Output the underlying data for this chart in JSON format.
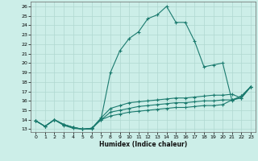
{
  "xlabel": "Humidex (Indice chaleur)",
  "bg_color": "#cceee8",
  "grid_color": "#b0d8d0",
  "line_color": "#1a7a6e",
  "xlim": [
    -0.5,
    23.5
  ],
  "ylim": [
    12.7,
    26.5
  ],
  "xticks": [
    0,
    1,
    2,
    3,
    4,
    5,
    6,
    7,
    8,
    9,
    10,
    11,
    12,
    13,
    14,
    15,
    16,
    17,
    18,
    19,
    20,
    21,
    22,
    23
  ],
  "yticks": [
    13,
    14,
    15,
    16,
    17,
    18,
    19,
    20,
    21,
    22,
    23,
    24,
    25,
    26
  ],
  "lines": [
    {
      "x": [
        0,
        1,
        2,
        3,
        4,
        5,
        6,
        7,
        8,
        9,
        10,
        11,
        12,
        13,
        14,
        15,
        16,
        17,
        18,
        19,
        20,
        21,
        22,
        23
      ],
      "y": [
        13.9,
        13.3,
        14.0,
        13.4,
        13.1,
        13.0,
        13.0,
        14.1,
        19.0,
        21.3,
        22.6,
        23.3,
        24.7,
        25.1,
        26.0,
        24.3,
        24.3,
        22.3,
        19.6,
        19.8,
        20.0,
        16.0,
        16.5,
        17.5
      ]
    },
    {
      "x": [
        0,
        1,
        2,
        3,
        4,
        5,
        6,
        7,
        8,
        9,
        10,
        11,
        12,
        13,
        14,
        15,
        16,
        17,
        18,
        19,
        20,
        21,
        22,
        23
      ],
      "y": [
        13.9,
        13.3,
        14.0,
        13.5,
        13.2,
        13.0,
        13.1,
        14.2,
        15.2,
        15.5,
        15.8,
        15.9,
        16.0,
        16.1,
        16.2,
        16.3,
        16.3,
        16.4,
        16.5,
        16.6,
        16.6,
        16.7,
        16.3,
        17.5
      ]
    },
    {
      "x": [
        0,
        1,
        2,
        3,
        4,
        5,
        6,
        7,
        8,
        9,
        10,
        11,
        12,
        13,
        14,
        15,
        16,
        17,
        18,
        19,
        20,
        21,
        22,
        23
      ],
      "y": [
        13.9,
        13.3,
        14.0,
        13.5,
        13.2,
        13.0,
        13.1,
        14.0,
        14.8,
        15.0,
        15.2,
        15.4,
        15.5,
        15.6,
        15.7,
        15.8,
        15.8,
        15.9,
        16.0,
        16.0,
        16.1,
        16.1,
        16.5,
        17.5
      ]
    },
    {
      "x": [
        0,
        1,
        2,
        3,
        4,
        5,
        6,
        7,
        8,
        9,
        10,
        11,
        12,
        13,
        14,
        15,
        16,
        17,
        18,
        19,
        20,
        21,
        22,
        23
      ],
      "y": [
        13.9,
        13.3,
        14.0,
        13.5,
        13.2,
        13.0,
        13.1,
        14.0,
        14.4,
        14.6,
        14.8,
        14.9,
        15.0,
        15.1,
        15.2,
        15.3,
        15.3,
        15.4,
        15.5,
        15.5,
        15.6,
        16.1,
        16.3,
        17.5
      ]
    }
  ]
}
